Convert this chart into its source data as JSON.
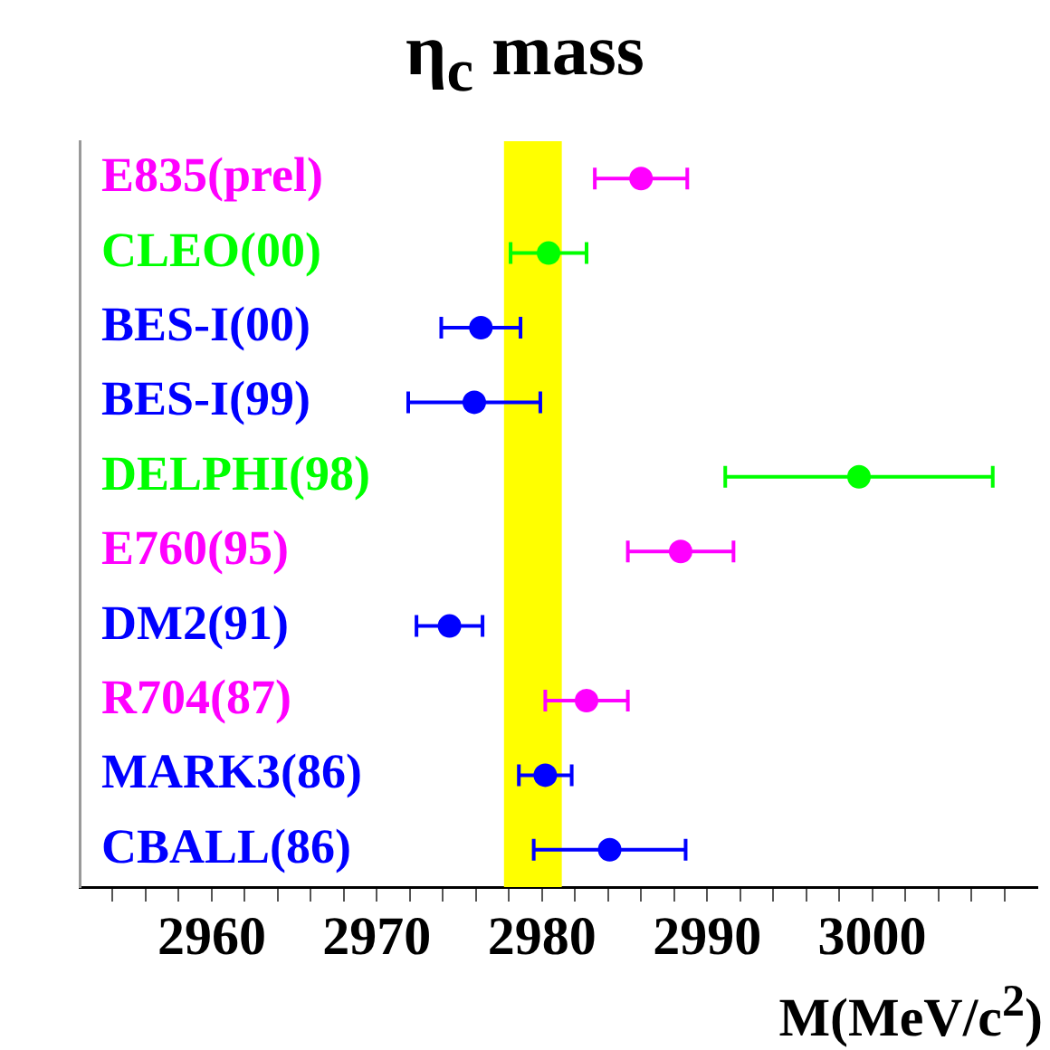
{
  "chart_data": {
    "type": "scatter",
    "orientation": "horizontal",
    "title": "η$_{c}$ mass",
    "xlabel": "M(MeV/c$^{2}$)",
    "categories": [
      "E835(prel)",
      "CLEO(00)",
      "BES-I(00)",
      "BES-I(99)",
      "DELPHI(98)",
      "E760(95)",
      "DM2(91)",
      "R704(87)",
      "MARK3(86)",
      "CBALL(86)"
    ],
    "values": [
      2986.0,
      2980.4,
      2976.3,
      2975.9,
      2999.2,
      2988.4,
      2974.4,
      2982.7,
      2980.2,
      2984.1
    ],
    "errors": [
      2.8,
      2.3,
      2.4,
      4.0,
      8.1,
      3.2,
      2.0,
      2.5,
      1.6,
      4.6
    ],
    "colors": [
      "#ff00ff",
      "#00ff00",
      "#0000ff",
      "#0000ff",
      "#00ff00",
      "#ff00ff",
      "#0000ff",
      "#ff00ff",
      "#0000ff",
      "#0000ff"
    ],
    "xlim": [
      2952,
      3010
    ],
    "xticks": [
      {
        "value": 2954,
        "label": null
      },
      {
        "value": 2956,
        "label": null
      },
      {
        "value": 2958,
        "label": null
      },
      2960,
      {
        "value": 2962,
        "label": null
      },
      {
        "value": 2964,
        "label": null
      },
      {
        "value": 2966,
        "label": null
      },
      {
        "value": 2968,
        "label": null
      },
      2970,
      {
        "value": 2972,
        "label": null
      },
      {
        "value": 2974,
        "label": null
      },
      {
        "value": 2976,
        "label": null
      },
      {
        "value": 2978,
        "label": null
      },
      2980,
      {
        "value": 2982,
        "label": null
      },
      {
        "value": 2984,
        "label": null
      },
      {
        "value": 2986,
        "label": null
      },
      {
        "value": 2988,
        "label": null
      },
      2990,
      {
        "value": 2992,
        "label": null
      },
      {
        "value": 2994,
        "label": null
      },
      {
        "value": 2996,
        "label": null
      },
      {
        "value": 2998,
        "label": null
      },
      3000,
      {
        "value": 3002,
        "label": null
      },
      {
        "value": 3004,
        "label": null
      },
      {
        "value": 3006,
        "label": null
      },
      {
        "value": 3008,
        "label": null
      }
    ],
    "bands": [
      {
        "axis": "x",
        "from": 2977.7,
        "to": 2981.2,
        "color": "#ffff00"
      }
    ],
    "marker": "circle",
    "grid": false,
    "legend": false
  }
}
